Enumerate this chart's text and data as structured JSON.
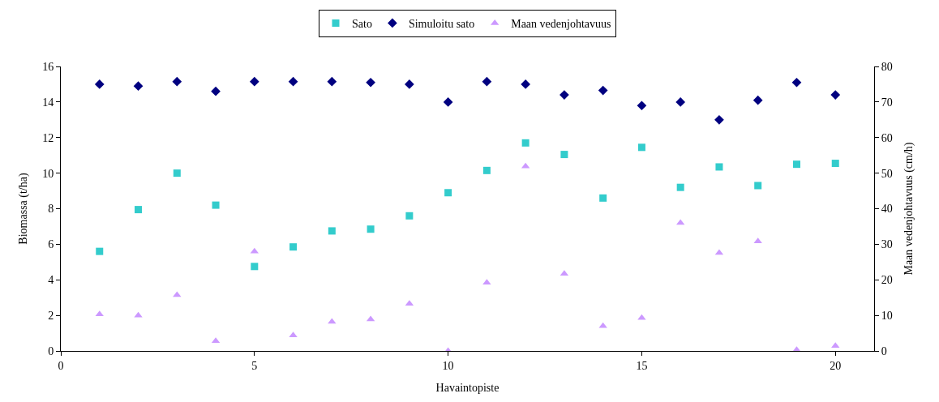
{
  "chart_data": {
    "type": "scatter",
    "xlabel": "Havaintopiste",
    "ylabel": "Biomassa (t/ha)",
    "y2label": "Maan vedenjohtavuus (cm/h)",
    "x": [
      1,
      2,
      3,
      4,
      5,
      6,
      7,
      8,
      9,
      10,
      11,
      12,
      13,
      14,
      15,
      16,
      17,
      18,
      19,
      20
    ],
    "series": [
      {
        "name": "Sato",
        "color": "#33cccc",
        "marker": "square",
        "values": [
          5.6,
          7.95,
          10.0,
          8.2,
          4.75,
          5.85,
          6.75,
          6.85,
          7.6,
          8.9,
          10.15,
          11.7,
          11.05,
          8.6,
          11.45,
          9.2,
          10.35,
          9.3,
          10.5,
          10.55
        ]
      },
      {
        "name": "Simuloitu sato",
        "color": "#000080",
        "marker": "diamond",
        "values": [
          15.0,
          14.9,
          15.15,
          14.6,
          15.15,
          15.15,
          15.15,
          15.1,
          15.0,
          14.0,
          15.15,
          15.0,
          14.4,
          14.65,
          13.8,
          14.0,
          13.0,
          14.1,
          15.1,
          14.4
        ]
      },
      {
        "name": "Maan vedenjohtavuus",
        "color": "#cc99ff",
        "marker": "triangle",
        "axis": "y2",
        "values": [
          10.3,
          10,
          15.7,
          2.8,
          28,
          4.4,
          8.2,
          8.9,
          13.3,
          0,
          19.2,
          51.9,
          21.7,
          7,
          9.3,
          36,
          27.6,
          30.8,
          0.3,
          1.4
        ]
      }
    ],
    "xlim": [
      0,
      21
    ],
    "xticks": [
      0,
      5,
      10,
      15,
      20
    ],
    "ylim": [
      0,
      16
    ],
    "yticks": [
      0,
      2,
      4,
      6,
      8,
      10,
      12,
      14,
      16
    ],
    "y2lim": [
      0,
      80
    ],
    "y2ticks": [
      0,
      10,
      20,
      30,
      40,
      50,
      60,
      70,
      80
    ],
    "legend": "top"
  }
}
